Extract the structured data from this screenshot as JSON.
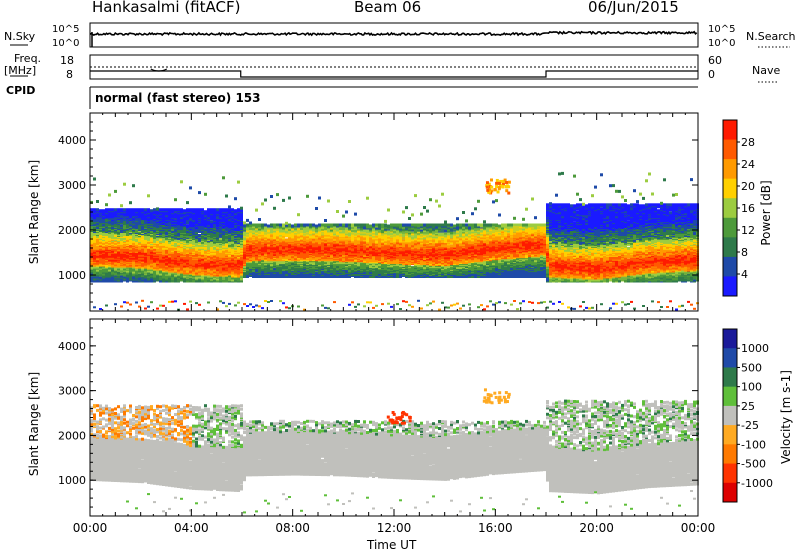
{
  "header": {
    "station": "Hankasalmi (fitACF)",
    "beam": "Beam 06",
    "date": "06/Jun/2015"
  },
  "top_panels": {
    "nsky_label": "N.Sky",
    "nsky_ticks": [
      "10^5",
      "10^0"
    ],
    "nsearch_label": "N.Search",
    "nsearch_ticks": [
      "10^5",
      "10^0"
    ],
    "freq_label": "Freq.",
    "freq_unit": "[MHz]",
    "freq_ticks": [
      "18",
      "8"
    ],
    "nave_label": "Nave",
    "nave_ticks": [
      "60",
      "0"
    ],
    "cpid_label": "CPID",
    "cpid_text": "normal (fast stereo) 153"
  },
  "colors": {
    "power_scale": [
      "#1a1aff",
      "#1e4aa8",
      "#2e7a4a",
      "#4d9a3a",
      "#9ccc40",
      "#ffd000",
      "#ff9a00",
      "#ff5a00",
      "#ff1a00"
    ],
    "velocity_scale": [
      "#1a1a9a",
      "#1f4aa8",
      "#2e7a4a",
      "#5fbf3a",
      "#c0c0bc",
      "#ffaa22",
      "#ff7a00",
      "#ff3300",
      "#dd0000"
    ],
    "ground_scatter": "#c0c0bc"
  },
  "chart_data": [
    {
      "type": "heatmap",
      "title": "Power",
      "ylabel": "Slant Range [km]",
      "yticks": [
        "1000",
        "2000",
        "3000",
        "4000"
      ],
      "ylim": [
        200,
        4600
      ],
      "xlim": [
        0,
        24
      ],
      "colorbar": {
        "label": "Power [dB]",
        "ticks": [
          "4",
          "8",
          "12",
          "16",
          "20",
          "24",
          "28"
        ],
        "range": [
          0,
          32
        ]
      },
      "main_band_center_km": [
        [
          0,
          1500
        ],
        [
          2,
          1450
        ],
        [
          4,
          1300
        ],
        [
          5.9,
          1250
        ],
        [
          6.1,
          1600
        ],
        [
          8,
          1620
        ],
        [
          10,
          1600
        ],
        [
          12,
          1540
        ],
        [
          14,
          1500
        ],
        [
          16,
          1640
        ],
        [
          17.9,
          1720
        ],
        [
          18.1,
          1250
        ],
        [
          20,
          1200
        ],
        [
          22,
          1340
        ],
        [
          24,
          1400
        ]
      ]
    },
    {
      "type": "heatmap",
      "title": "Velocity",
      "ylabel": "Slant Range [km]",
      "yticks": [
        "1000",
        "2000",
        "3000",
        "4000"
      ],
      "ylim": [
        200,
        4600
      ],
      "xlim": [
        0,
        24
      ],
      "colorbar": {
        "label": "Velocity [m s-1]",
        "ticks": [
          "1000",
          "500",
          "100",
          "25",
          "-25",
          "-100",
          "-500",
          "-1000"
        ]
      }
    }
  ],
  "time_axis": {
    "ticks": [
      "00:00",
      "04:00",
      "08:00",
      "12:00",
      "16:00",
      "20:00",
      "00:00"
    ],
    "label": "Time UT"
  }
}
